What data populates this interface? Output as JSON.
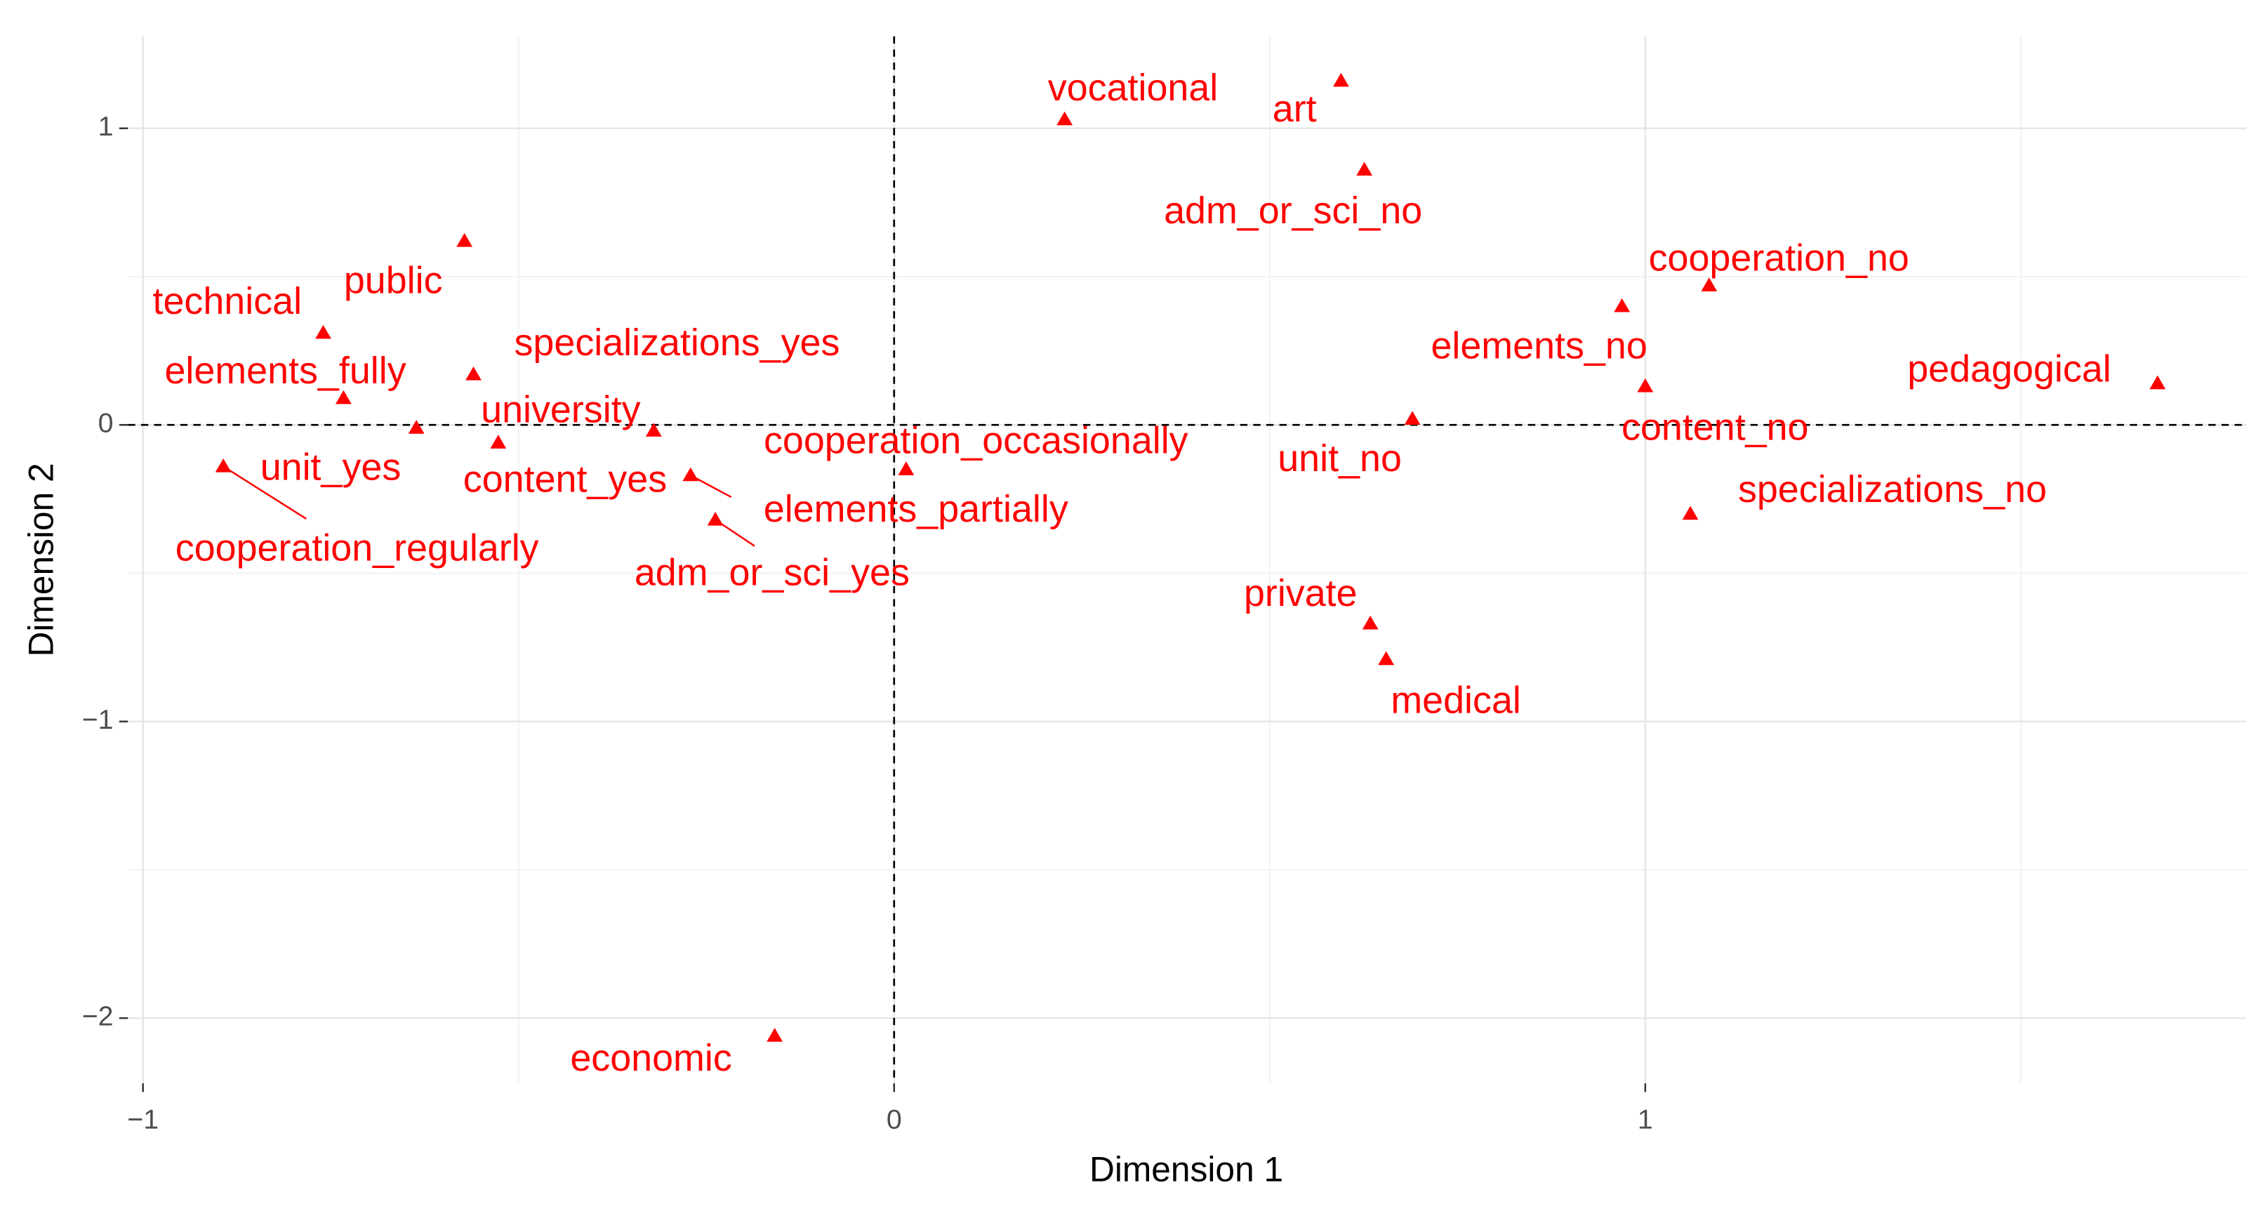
{
  "chart_data": {
    "type": "scatter",
    "xlabel": "Dimension 1",
    "ylabel": "Dimension 2",
    "color": "#ff0000",
    "labels": [
      "vocational",
      "art",
      "adm_or_sci_no",
      "cooperation_no",
      "elements_no",
      "pedagogical",
      "content_no",
      "unit_no",
      "specializations_no",
      "private",
      "medical",
      "economic",
      "cooperation_occasionally",
      "elements_partially",
      "adm_or_sci_yes",
      "content_yes",
      "university",
      "specializations_yes",
      "elements_fully",
      "technical",
      "public",
      "unit_yes",
      "cooperation_regularly"
    ],
    "x": [
      0.227,
      0.595,
      0.626,
      1.085,
      0.969,
      1.682,
      1.0,
      0.69,
      1.06,
      0.634,
      0.655,
      -0.159,
      0.016,
      -0.271,
      -0.238,
      -0.32,
      -0.527,
      -0.56,
      -0.733,
      -0.76,
      -0.572,
      -0.636,
      -0.893
    ],
    "y": [
      1.03,
      1.16,
      0.86,
      0.47,
      0.4,
      0.14,
      0.13,
      0.02,
      -0.3,
      -0.67,
      -0.79,
      -2.06,
      -0.15,
      -0.17,
      -0.32,
      -0.02,
      -0.06,
      0.17,
      0.09,
      0.31,
      0.62,
      -0.01,
      -0.14
    ],
    "xlim": [
      -1.02,
      1.8
    ],
    "ylim": [
      -2.22,
      1.31
    ],
    "xticks": [
      {
        "value": -1,
        "label": "−1"
      },
      0,
      1
    ],
    "yticks": [
      {
        "value": -2,
        "label": "−2"
      },
      {
        "value": -1,
        "label": "−1"
      },
      0,
      1
    ],
    "minor_xticks": [
      -0.5,
      0.5,
      1.5
    ],
    "minor_yticks": [
      -1.5,
      -0.5,
      0.5
    ],
    "vline": 0,
    "hline": 0,
    "grid": true
  }
}
